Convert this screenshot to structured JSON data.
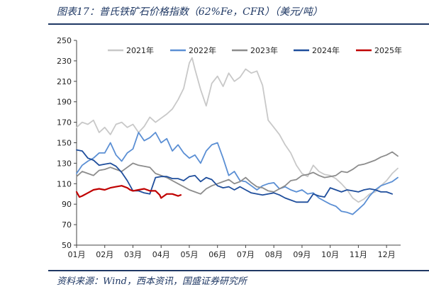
{
  "figure": {
    "title": "图表17：普氏铁矿石价格指数（62%Fe，CFR）（美元/吨）",
    "source": "资料来源：Wind，西本资讯，国盛证券研究所"
  },
  "chart_data": {
    "type": "line",
    "title": "",
    "xlabel": "",
    "ylabel": "",
    "ylim": [
      50,
      250
    ],
    "yticks": [
      50,
      70,
      90,
      110,
      130,
      150,
      170,
      190,
      210,
      230,
      250
    ],
    "xlim": [
      1,
      12.5
    ],
    "xtick_labels": [
      "01月",
      "02月",
      "03月",
      "04月",
      "05月",
      "06月",
      "07月",
      "08月",
      "09月",
      "10月",
      "11月",
      "12月"
    ],
    "grid": false,
    "legend": "top",
    "x_unit": "month",
    "series": [
      {
        "name": "2021年",
        "color": "#c8c8c8",
        "x": [
          1.0,
          1.2,
          1.4,
          1.6,
          1.8,
          2.0,
          2.2,
          2.4,
          2.6,
          2.8,
          3.0,
          3.2,
          3.4,
          3.6,
          3.8,
          4.0,
          4.2,
          4.4,
          4.6,
          4.8,
          5.0,
          5.1,
          5.2,
          5.4,
          5.6,
          5.8,
          6.0,
          6.2,
          6.4,
          6.6,
          6.8,
          7.0,
          7.2,
          7.4,
          7.6,
          7.8,
          8.0,
          8.2,
          8.4,
          8.6,
          8.8,
          9.0,
          9.2,
          9.4,
          9.6,
          9.8,
          10.0,
          10.2,
          10.4,
          10.6,
          10.8,
          11.0,
          11.2,
          11.4,
          11.6,
          11.8,
          12.0,
          12.2,
          12.4
        ],
        "y": [
          165,
          170,
          168,
          172,
          160,
          165,
          158,
          168,
          170,
          165,
          168,
          160,
          166,
          175,
          170,
          174,
          178,
          183,
          192,
          203,
          228,
          233,
          222,
          202,
          186,
          208,
          215,
          205,
          218,
          210,
          214,
          222,
          218,
          220,
          206,
          172,
          165,
          158,
          148,
          140,
          128,
          120,
          117,
          128,
          122,
          119,
          118,
          115,
          110,
          104,
          96,
          92,
          95,
          100,
          102,
          108,
          113,
          120,
          125
        ]
      },
      {
        "name": "2022年",
        "color": "#5b8fd4",
        "x": [
          1.0,
          1.2,
          1.4,
          1.6,
          1.8,
          2.0,
          2.2,
          2.4,
          2.6,
          2.8,
          3.0,
          3.2,
          3.4,
          3.6,
          3.8,
          4.0,
          4.2,
          4.4,
          4.6,
          4.8,
          5.0,
          5.2,
          5.4,
          5.6,
          5.8,
          6.0,
          6.2,
          6.4,
          6.6,
          6.8,
          7.0,
          7.2,
          7.4,
          7.6,
          7.8,
          8.0,
          8.2,
          8.4,
          8.6,
          8.8,
          9.0,
          9.2,
          9.4,
          9.6,
          9.8,
          10.0,
          10.2,
          10.4,
          10.6,
          10.8,
          11.0,
          11.2,
          11.4,
          11.6,
          11.8,
          12.0,
          12.2,
          12.4
        ],
        "y": [
          120,
          128,
          132,
          135,
          140,
          140,
          150,
          138,
          132,
          140,
          144,
          160,
          152,
          155,
          160,
          150,
          154,
          142,
          148,
          140,
          135,
          138,
          130,
          142,
          148,
          150,
          135,
          118,
          122,
          113,
          112,
          108,
          104,
          108,
          110,
          111,
          105,
          107,
          104,
          102,
          104,
          100,
          101,
          96,
          93,
          90,
          88,
          83,
          82,
          80,
          85,
          90,
          98,
          104,
          108,
          110,
          112,
          116
        ]
      },
      {
        "name": "2023年",
        "color": "#8c8c8c",
        "x": [
          1.0,
          1.2,
          1.4,
          1.6,
          1.8,
          2.0,
          2.2,
          2.4,
          2.6,
          2.8,
          3.0,
          3.2,
          3.4,
          3.6,
          3.8,
          4.0,
          4.2,
          4.4,
          4.6,
          4.8,
          5.0,
          5.2,
          5.4,
          5.6,
          5.8,
          6.0,
          6.2,
          6.4,
          6.6,
          6.8,
          7.0,
          7.2,
          7.4,
          7.6,
          7.8,
          8.0,
          8.2,
          8.4,
          8.6,
          8.8,
          9.0,
          9.2,
          9.4,
          9.6,
          9.8,
          10.0,
          10.2,
          10.4,
          10.6,
          10.8,
          11.0,
          11.2,
          11.4,
          11.6,
          11.8,
          12.0,
          12.2,
          12.4
        ],
        "y": [
          117,
          122,
          120,
          118,
          123,
          124,
          126,
          124,
          122,
          126,
          130,
          128,
          127,
          126,
          120,
          118,
          116,
          113,
          110,
          107,
          104,
          102,
          100,
          105,
          108,
          110,
          112,
          114,
          110,
          112,
          116,
          111,
          107,
          106,
          103,
          102,
          105,
          108,
          113,
          114,
          118,
          119,
          121,
          118,
          116,
          117,
          118,
          122,
          121,
          124,
          128,
          129,
          131,
          133,
          136,
          138,
          141,
          137
        ]
      },
      {
        "name": "2024年",
        "color": "#1f4e9c",
        "x": [
          1.0,
          1.2,
          1.4,
          1.6,
          1.8,
          2.0,
          2.2,
          2.4,
          2.6,
          2.8,
          3.0,
          3.2,
          3.4,
          3.6,
          3.8,
          4.0,
          4.2,
          4.4,
          4.6,
          4.8,
          5.0,
          5.2,
          5.4,
          5.6,
          5.8,
          6.0,
          6.2,
          6.4,
          6.6,
          6.8,
          7.0,
          7.2,
          7.4,
          7.6,
          7.8,
          8.0,
          8.2,
          8.4,
          8.6,
          8.8,
          9.0,
          9.2,
          9.4,
          9.6,
          9.8,
          10.0,
          10.2,
          10.4,
          10.6,
          10.8,
          11.0,
          11.2,
          11.4,
          11.6,
          11.8,
          12.0,
          12.2
        ],
        "y": [
          143,
          142,
          135,
          133,
          128,
          129,
          130,
          127,
          121,
          113,
          103,
          103,
          101,
          100,
          116,
          117,
          117,
          115,
          115,
          113,
          117,
          118,
          112,
          116,
          114,
          108,
          106,
          107,
          104,
          107,
          104,
          101,
          100,
          99,
          100,
          101,
          99,
          96,
          94,
          92,
          92,
          92,
          100,
          98,
          97,
          106,
          104,
          102,
          104,
          103,
          102,
          104,
          105,
          104,
          102,
          102,
          100
        ]
      },
      {
        "name": "2025年",
        "color": "#c00000",
        "x": [
          1.0,
          1.1,
          1.2,
          1.4,
          1.6,
          1.8,
          2.0,
          2.2,
          2.4,
          2.6,
          2.8,
          2.9,
          3.0,
          3.2,
          3.4,
          3.6,
          3.8,
          3.95,
          4.0,
          4.1,
          4.2,
          4.4,
          4.6,
          4.7
        ],
        "y": [
          102,
          97,
          98,
          101,
          104,
          105,
          104,
          106,
          107,
          108,
          106,
          104,
          103,
          104,
          105,
          103,
          103,
          99,
          96,
          98,
          100,
          100,
          98,
          99
        ]
      }
    ]
  }
}
